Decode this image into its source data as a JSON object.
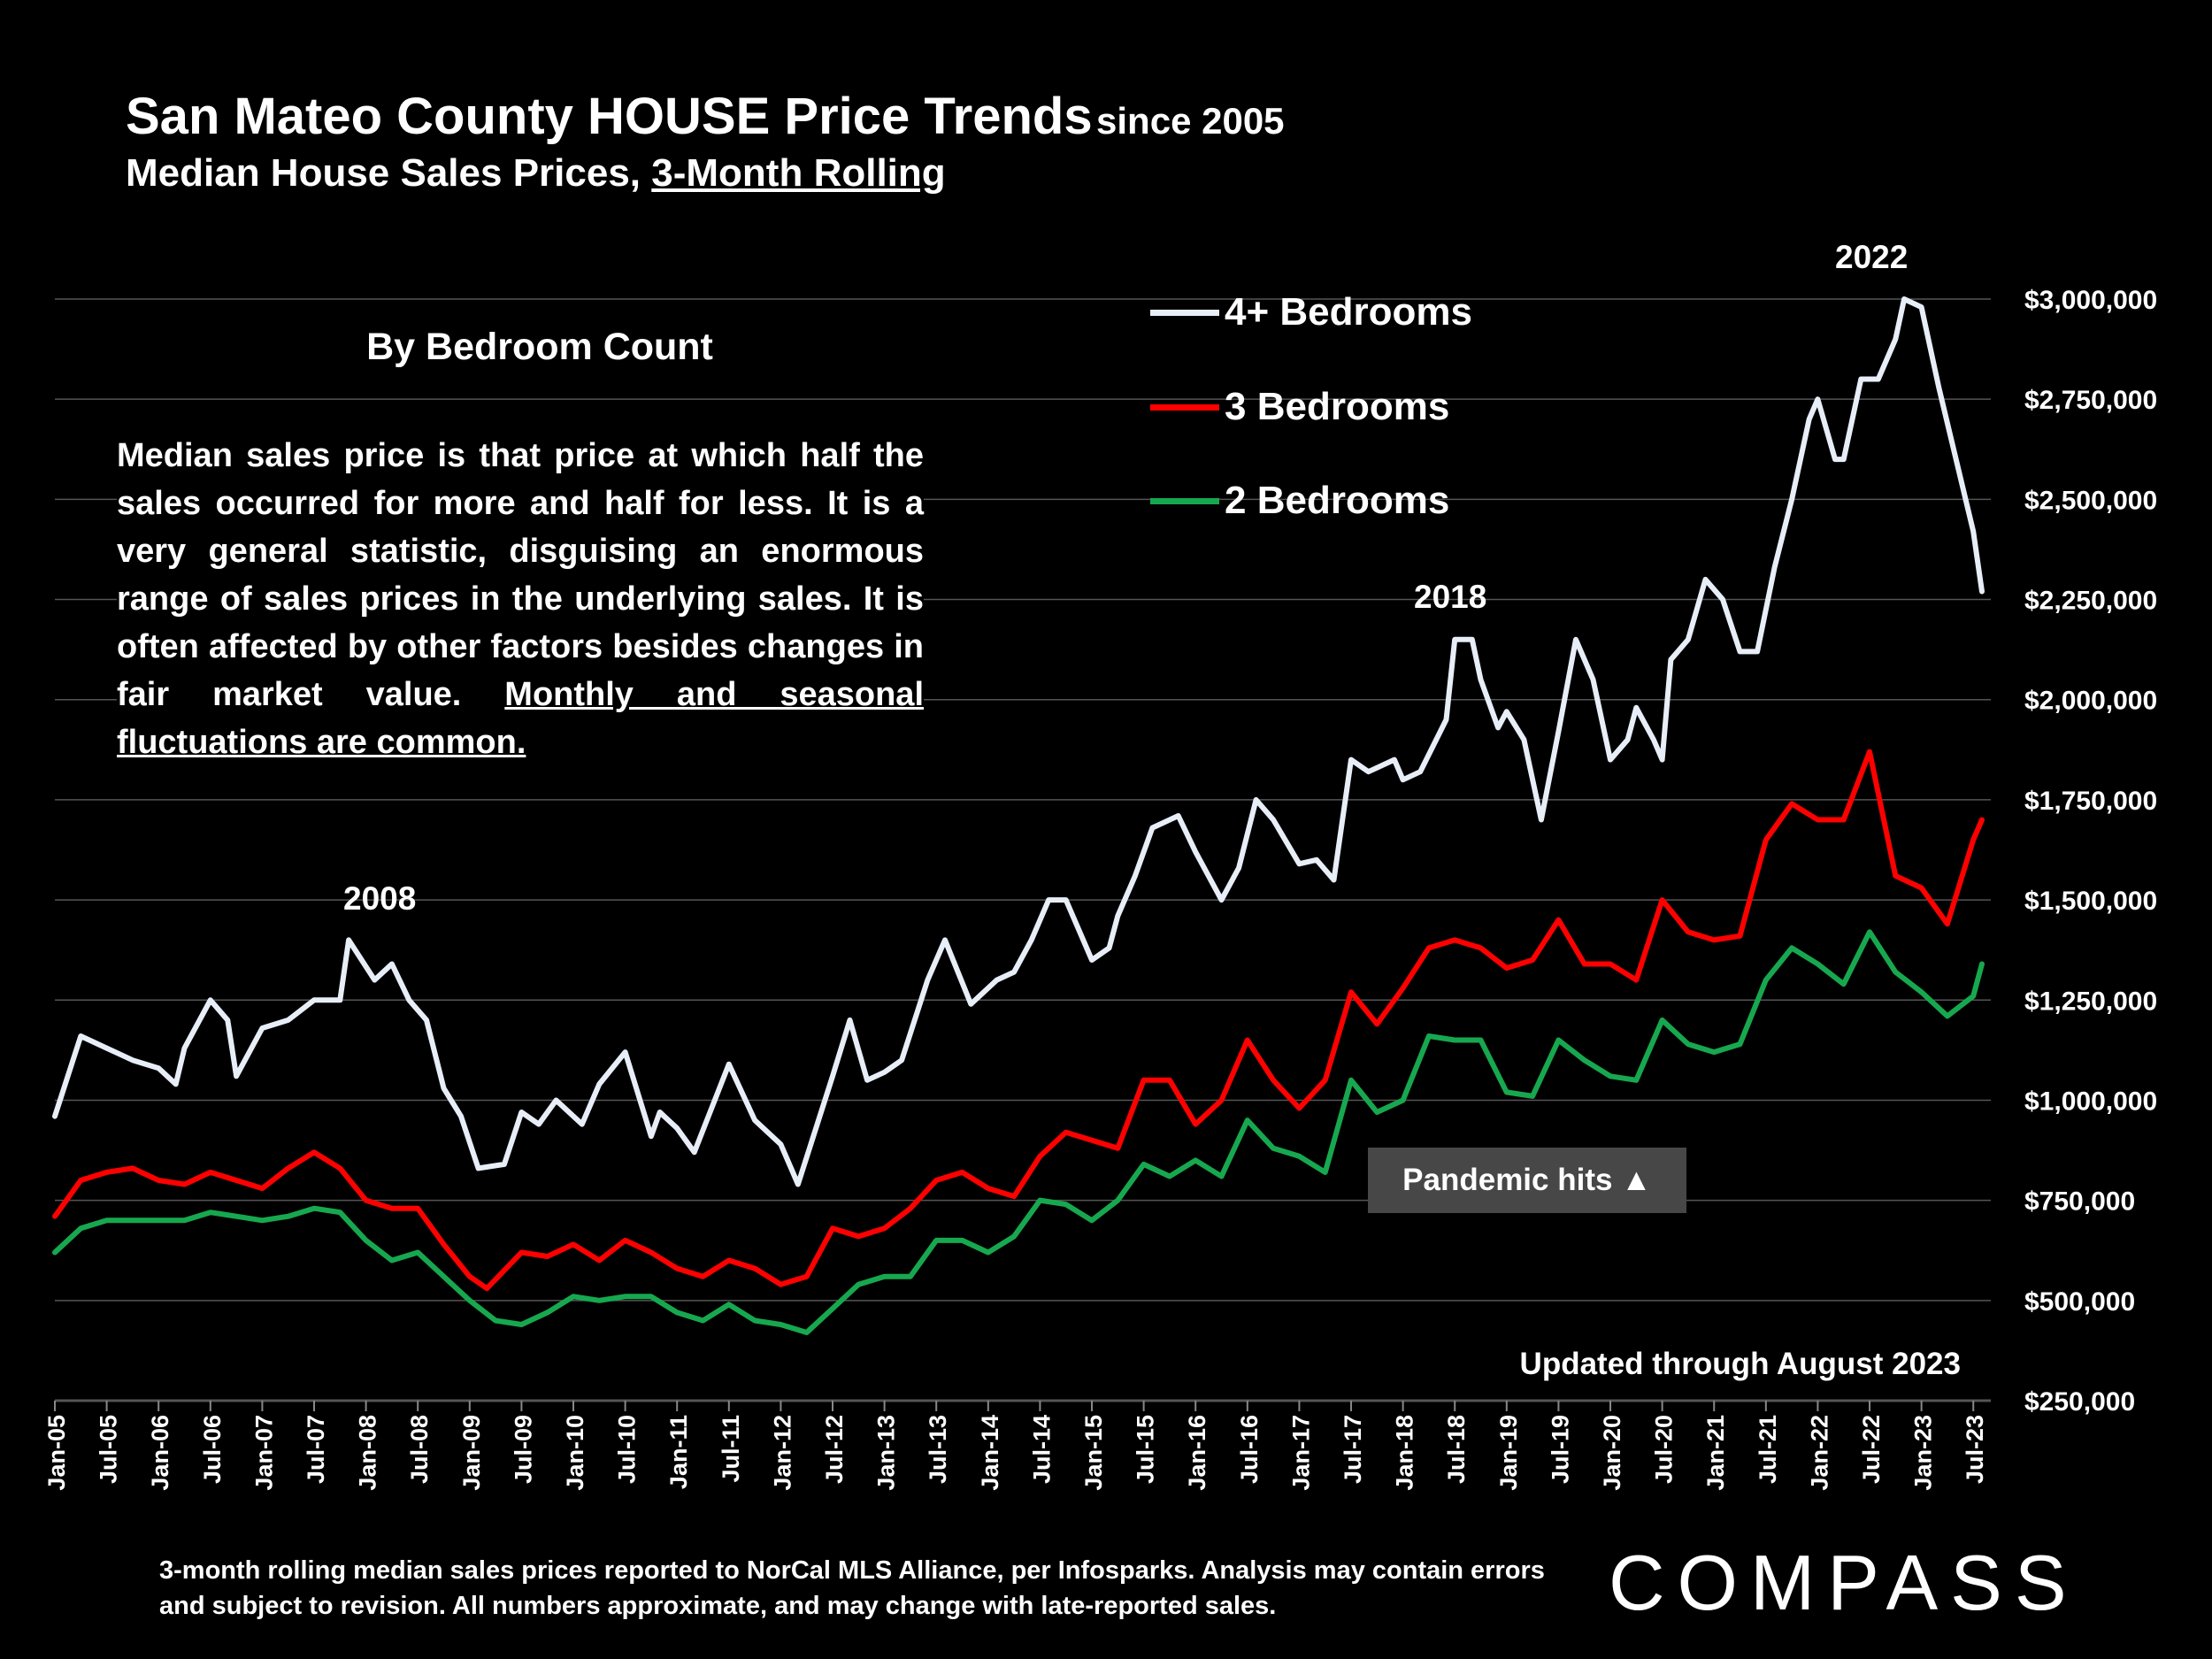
{
  "title": {
    "main": "San Mateo County HOUSE Price Trends",
    "main_suffix": "since 2005",
    "subtitle_prefix": "Median House Sales Prices,",
    "subtitle_underlined": "3-Month Rolling"
  },
  "note": {
    "heading": "By Bedroom Count",
    "body": "Median sales price is that price at which half the sales occurred for more and half for less. It is a very general statistic, disguising an enormous range of sales prices in the underlying sales. It is often affected by other factors besides changes in fair market value.",
    "body_underlined": "Monthly and seasonal fluctuations are common."
  },
  "annotations": {
    "y2008": "2008",
    "y2018": "2018",
    "y2022": "2022",
    "pandemic": "Pandemic hits ▲",
    "updated": "Updated through August 2023"
  },
  "footer": "3-month rolling median sales prices reported to NorCal MLS Alliance, per Infosparks.  Analysis may contain errors and subject to revision. All numbers approximate, and may change with late-reported sales.",
  "logo": "COMPASS",
  "colors": {
    "background": "#000000",
    "four_plus": "#e8eef8",
    "three": "#ff0000",
    "two": "#17a84f",
    "grid": "#555555",
    "pandemic_box": "#474747"
  },
  "chart_data": {
    "type": "line",
    "ylim": [
      250000,
      3000000
    ],
    "yticks": [
      "$250,000",
      "$500,000",
      "$750,000",
      "$1,000,000",
      "$1,250,000",
      "$1,500,000",
      "$1,750,000",
      "$2,000,000",
      "$2,250,000",
      "$2,500,000",
      "$2,750,000",
      "$3,000,000"
    ],
    "ytick_values": [
      250000,
      500000,
      750000,
      1000000,
      1250000,
      1500000,
      1750000,
      2000000,
      2250000,
      2500000,
      2750000,
      3000000
    ],
    "x_start": "Jan-05",
    "x_end": "Aug-23",
    "xtick_labels": [
      "Jan-05",
      "Jul-05",
      "Jan-06",
      "Jul-06",
      "Jan-07",
      "Jul-07",
      "Jan-08",
      "Jul-08",
      "Jan-09",
      "Jul-09",
      "Jan-10",
      "Jul-10",
      "Jan-11",
      "Jul-11",
      "Jan-12",
      "Jul-12",
      "Jan-13",
      "Jul-13",
      "Jan-14",
      "Jul-14",
      "Jan-15",
      "Jul-15",
      "Jan-16",
      "Jul-16",
      "Jan-17",
      "Jul-17",
      "Jan-18",
      "Jul-18",
      "Jan-19",
      "Jul-19",
      "Jan-20",
      "Jul-20",
      "Jan-21",
      "Jul-21",
      "Jan-22",
      "Jul-22",
      "Jan-23",
      "Jul-23"
    ],
    "series": [
      {
        "name": "4+ Bedrooms",
        "color": "#e8eef8",
        "points": [
          [
            "Jan-05",
            960000
          ],
          [
            "Apr-05",
            1160000
          ],
          [
            "Jul-05",
            1130000
          ],
          [
            "Oct-05",
            1100000
          ],
          [
            "Jan-06",
            1080000
          ],
          [
            "Mar-06",
            1040000
          ],
          [
            "Apr-06",
            1130000
          ],
          [
            "Jul-06",
            1250000
          ],
          [
            "Sep-06",
            1200000
          ],
          [
            "Oct-06",
            1060000
          ],
          [
            "Jan-07",
            1180000
          ],
          [
            "Apr-07",
            1200000
          ],
          [
            "Jul-07",
            1250000
          ],
          [
            "Oct-07",
            1250000
          ],
          [
            "Nov-07",
            1400000
          ],
          [
            "Feb-08",
            1300000
          ],
          [
            "Apr-08",
            1340000
          ],
          [
            "Jun-08",
            1250000
          ],
          [
            "Aug-08",
            1200000
          ],
          [
            "Oct-08",
            1030000
          ],
          [
            "Dec-08",
            960000
          ],
          [
            "Feb-09",
            830000
          ],
          [
            "May-09",
            840000
          ],
          [
            "Jul-09",
            970000
          ],
          [
            "Sep-09",
            940000
          ],
          [
            "Nov-09",
            1000000
          ],
          [
            "Feb-10",
            940000
          ],
          [
            "Apr-10",
            1040000
          ],
          [
            "Jul-10",
            1120000
          ],
          [
            "Oct-10",
            910000
          ],
          [
            "Nov-10",
            970000
          ],
          [
            "Jan-11",
            930000
          ],
          [
            "Mar-11",
            870000
          ],
          [
            "Jul-11",
            1090000
          ],
          [
            "Oct-11",
            950000
          ],
          [
            "Jan-12",
            890000
          ],
          [
            "Mar-12",
            790000
          ],
          [
            "Jul-12",
            1060000
          ],
          [
            "Sep-12",
            1200000
          ],
          [
            "Nov-12",
            1050000
          ],
          [
            "Jan-13",
            1070000
          ],
          [
            "Mar-13",
            1100000
          ],
          [
            "Jun-13",
            1300000
          ],
          [
            "Aug-13",
            1400000
          ],
          [
            "Nov-13",
            1240000
          ],
          [
            "Feb-14",
            1300000
          ],
          [
            "Apr-14",
            1320000
          ],
          [
            "Jun-14",
            1400000
          ],
          [
            "Aug-14",
            1500000
          ],
          [
            "Oct-14",
            1500000
          ],
          [
            "Jan-15",
            1350000
          ],
          [
            "Mar-15",
            1380000
          ],
          [
            "Apr-15",
            1460000
          ],
          [
            "Jun-15",
            1560000
          ],
          [
            "Aug-15",
            1680000
          ],
          [
            "Nov-15",
            1710000
          ],
          [
            "Jan-16",
            1620000
          ],
          [
            "Apr-16",
            1500000
          ],
          [
            "Jun-16",
            1580000
          ],
          [
            "Aug-16",
            1750000
          ],
          [
            "Oct-16",
            1700000
          ],
          [
            "Jan-17",
            1590000
          ],
          [
            "Mar-17",
            1600000
          ],
          [
            "May-17",
            1550000
          ],
          [
            "Jul-17",
            1850000
          ],
          [
            "Sep-17",
            1820000
          ],
          [
            "Dec-17",
            1850000
          ],
          [
            "Jan-18",
            1800000
          ],
          [
            "Mar-18",
            1820000
          ],
          [
            "Jun-18",
            1950000
          ],
          [
            "Jul-18",
            2150000
          ],
          [
            "Sep-18",
            2150000
          ],
          [
            "Oct-18",
            2050000
          ],
          [
            "Dec-18",
            1930000
          ],
          [
            "Jan-19",
            1970000
          ],
          [
            "Mar-19",
            1900000
          ],
          [
            "May-19",
            1700000
          ],
          [
            "Jul-19",
            1920000
          ],
          [
            "Sep-19",
            2150000
          ],
          [
            "Nov-19",
            2050000
          ],
          [
            "Jan-20",
            1850000
          ],
          [
            "Mar-20",
            1900000
          ],
          [
            "Apr-20",
            1980000
          ],
          [
            "Jun-20",
            1900000
          ],
          [
            "Jul-20",
            1850000
          ],
          [
            "Aug-20",
            2100000
          ],
          [
            "Oct-20",
            2150000
          ],
          [
            "Dec-20",
            2300000
          ],
          [
            "Feb-21",
            2250000
          ],
          [
            "Apr-21",
            2120000
          ],
          [
            "Jun-21",
            2120000
          ],
          [
            "Aug-21",
            2330000
          ],
          [
            "Oct-21",
            2500000
          ],
          [
            "Dec-21",
            2700000
          ],
          [
            "Jan-22",
            2750000
          ],
          [
            "Mar-22",
            2600000
          ],
          [
            "Apr-22",
            2600000
          ],
          [
            "Jun-22",
            2800000
          ],
          [
            "Aug-22",
            2800000
          ],
          [
            "Oct-22",
            2900000
          ],
          [
            "Nov-22",
            3000000
          ],
          [
            "Jan-23",
            2980000
          ],
          [
            "Mar-23",
            2780000
          ],
          [
            "May-23",
            2600000
          ],
          [
            "Jul-23",
            2420000
          ],
          [
            "Aug-23",
            2270000
          ]
        ]
      },
      {
        "name": "3 Bedrooms",
        "color": "#ff0000",
        "points": [
          [
            "Jan-05",
            710000
          ],
          [
            "Apr-05",
            800000
          ],
          [
            "Jul-05",
            820000
          ],
          [
            "Oct-05",
            830000
          ],
          [
            "Jan-06",
            800000
          ],
          [
            "Apr-06",
            790000
          ],
          [
            "Jul-06",
            820000
          ],
          [
            "Oct-06",
            800000
          ],
          [
            "Jan-07",
            780000
          ],
          [
            "Apr-07",
            830000
          ],
          [
            "Jul-07",
            870000
          ],
          [
            "Oct-07",
            830000
          ],
          [
            "Jan-08",
            750000
          ],
          [
            "Apr-08",
            730000
          ],
          [
            "Jul-08",
            730000
          ],
          [
            "Oct-08",
            640000
          ],
          [
            "Jan-09",
            560000
          ],
          [
            "Mar-09",
            530000
          ],
          [
            "Jul-09",
            620000
          ],
          [
            "Oct-09",
            610000
          ],
          [
            "Jan-10",
            640000
          ],
          [
            "Apr-10",
            600000
          ],
          [
            "Jul-10",
            650000
          ],
          [
            "Oct-10",
            620000
          ],
          [
            "Jan-11",
            580000
          ],
          [
            "Apr-11",
            560000
          ],
          [
            "Jul-11",
            600000
          ],
          [
            "Oct-11",
            580000
          ],
          [
            "Jan-12",
            540000
          ],
          [
            "Apr-12",
            560000
          ],
          [
            "Jul-12",
            680000
          ],
          [
            "Oct-12",
            660000
          ],
          [
            "Jan-13",
            680000
          ],
          [
            "Apr-13",
            730000
          ],
          [
            "Jul-13",
            800000
          ],
          [
            "Oct-13",
            820000
          ],
          [
            "Jan-14",
            780000
          ],
          [
            "Apr-14",
            760000
          ],
          [
            "Jul-14",
            860000
          ],
          [
            "Oct-14",
            920000
          ],
          [
            "Jan-15",
            900000
          ],
          [
            "Apr-15",
            880000
          ],
          [
            "Jul-15",
            1050000
          ],
          [
            "Oct-15",
            1050000
          ],
          [
            "Jan-16",
            940000
          ],
          [
            "Apr-16",
            1000000
          ],
          [
            "Jul-16",
            1150000
          ],
          [
            "Oct-16",
            1050000
          ],
          [
            "Jan-17",
            980000
          ],
          [
            "Apr-17",
            1050000
          ],
          [
            "Jul-17",
            1270000
          ],
          [
            "Oct-17",
            1190000
          ],
          [
            "Jan-18",
            1280000
          ],
          [
            "Apr-18",
            1380000
          ],
          [
            "Jul-18",
            1400000
          ],
          [
            "Oct-18",
            1380000
          ],
          [
            "Jan-19",
            1330000
          ],
          [
            "Apr-19",
            1350000
          ],
          [
            "Jul-19",
            1450000
          ],
          [
            "Oct-19",
            1340000
          ],
          [
            "Jan-20",
            1340000
          ],
          [
            "Apr-20",
            1300000
          ],
          [
            "Jul-20",
            1500000
          ],
          [
            "Oct-20",
            1420000
          ],
          [
            "Jan-21",
            1400000
          ],
          [
            "Apr-21",
            1410000
          ],
          [
            "Jul-21",
            1650000
          ],
          [
            "Oct-21",
            1740000
          ],
          [
            "Jan-22",
            1700000
          ],
          [
            "Apr-22",
            1700000
          ],
          [
            "Jul-22",
            1870000
          ],
          [
            "Oct-22",
            1560000
          ],
          [
            "Jan-23",
            1530000
          ],
          [
            "Apr-23",
            1440000
          ],
          [
            "Jul-23",
            1650000
          ],
          [
            "Aug-23",
            1700000
          ]
        ]
      },
      {
        "name": "2 Bedrooms",
        "color": "#17a84f",
        "points": [
          [
            "Jan-05",
            620000
          ],
          [
            "Apr-05",
            680000
          ],
          [
            "Jul-05",
            700000
          ],
          [
            "Oct-05",
            700000
          ],
          [
            "Jan-06",
            700000
          ],
          [
            "Apr-06",
            700000
          ],
          [
            "Jul-06",
            720000
          ],
          [
            "Oct-06",
            710000
          ],
          [
            "Jan-07",
            700000
          ],
          [
            "Apr-07",
            710000
          ],
          [
            "Jul-07",
            730000
          ],
          [
            "Oct-07",
            720000
          ],
          [
            "Jan-08",
            650000
          ],
          [
            "Apr-08",
            600000
          ],
          [
            "Jul-08",
            620000
          ],
          [
            "Oct-08",
            560000
          ],
          [
            "Jan-09",
            500000
          ],
          [
            "Apr-09",
            450000
          ],
          [
            "Jul-09",
            440000
          ],
          [
            "Oct-09",
            470000
          ],
          [
            "Jan-10",
            510000
          ],
          [
            "Apr-10",
            500000
          ],
          [
            "Jul-10",
            510000
          ],
          [
            "Oct-10",
            510000
          ],
          [
            "Jan-11",
            470000
          ],
          [
            "Apr-11",
            450000
          ],
          [
            "Jul-11",
            490000
          ],
          [
            "Oct-11",
            450000
          ],
          [
            "Jan-12",
            440000
          ],
          [
            "Apr-12",
            420000
          ],
          [
            "Jul-12",
            480000
          ],
          [
            "Oct-12",
            540000
          ],
          [
            "Jan-13",
            560000
          ],
          [
            "Apr-13",
            560000
          ],
          [
            "Jul-13",
            650000
          ],
          [
            "Oct-13",
            650000
          ],
          [
            "Jan-14",
            620000
          ],
          [
            "Apr-14",
            660000
          ],
          [
            "Jul-14",
            750000
          ],
          [
            "Oct-14",
            740000
          ],
          [
            "Jan-15",
            700000
          ],
          [
            "Apr-15",
            750000
          ],
          [
            "Jul-15",
            840000
          ],
          [
            "Oct-15",
            810000
          ],
          [
            "Jan-16",
            850000
          ],
          [
            "Apr-16",
            810000
          ],
          [
            "Jul-16",
            950000
          ],
          [
            "Oct-16",
            880000
          ],
          [
            "Jan-17",
            860000
          ],
          [
            "Apr-17",
            820000
          ],
          [
            "Jul-17",
            1050000
          ],
          [
            "Oct-17",
            970000
          ],
          [
            "Jan-18",
            1000000
          ],
          [
            "Apr-18",
            1160000
          ],
          [
            "Jul-18",
            1150000
          ],
          [
            "Oct-18",
            1150000
          ],
          [
            "Jan-19",
            1020000
          ],
          [
            "Apr-19",
            1010000
          ],
          [
            "Jul-19",
            1150000
          ],
          [
            "Oct-19",
            1100000
          ],
          [
            "Jan-20",
            1060000
          ],
          [
            "Apr-20",
            1050000
          ],
          [
            "Jul-20",
            1200000
          ],
          [
            "Oct-20",
            1140000
          ],
          [
            "Jan-21",
            1120000
          ],
          [
            "Apr-21",
            1140000
          ],
          [
            "Jul-21",
            1300000
          ],
          [
            "Oct-21",
            1380000
          ],
          [
            "Jan-22",
            1340000
          ],
          [
            "Apr-22",
            1290000
          ],
          [
            "Jul-22",
            1420000
          ],
          [
            "Oct-22",
            1320000
          ],
          [
            "Jan-23",
            1270000
          ],
          [
            "Apr-23",
            1210000
          ],
          [
            "Jul-23",
            1260000
          ],
          [
            "Aug-23",
            1340000
          ]
        ]
      }
    ]
  }
}
